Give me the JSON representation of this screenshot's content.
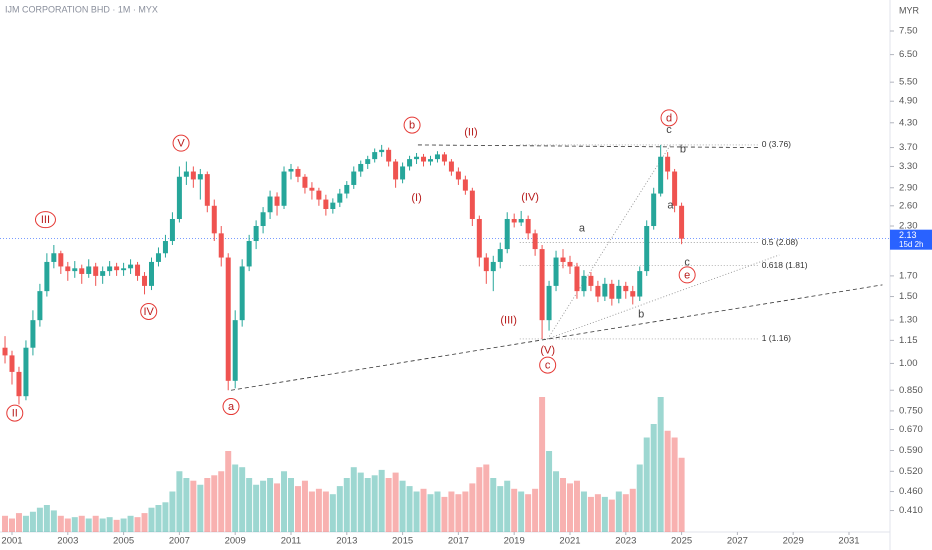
{
  "chart_data": {
    "type": "candlestick",
    "title": "IJM CORPORATION BHD · 1M · MYX",
    "currency": "MYR",
    "last_price": 2.13,
    "countdown": "15d 2h",
    "log_scale": true,
    "grid": false,
    "up_color": "#26a69a",
    "down_color": "#ef5350",
    "x": [
      2000.75,
      2001,
      2001.25,
      2001.5,
      2001.75,
      2002,
      2002.25,
      2002.5,
      2002.75,
      2003,
      2003.25,
      2003.5,
      2003.75,
      2004,
      2004.25,
      2004.5,
      2004.75,
      2005,
      2005.25,
      2005.5,
      2005.75,
      2006,
      2006.25,
      2006.5,
      2006.75,
      2007,
      2007.25,
      2007.5,
      2007.75,
      2008,
      2008.25,
      2008.5,
      2008.75,
      2009,
      2009.25,
      2009.5,
      2009.75,
      2010,
      2010.25,
      2010.5,
      2010.75,
      2011,
      2011.25,
      2011.5,
      2011.75,
      2012,
      2012.25,
      2012.5,
      2012.75,
      2013,
      2013.25,
      2013.5,
      2013.75,
      2014,
      2014.25,
      2014.5,
      2014.75,
      2015,
      2015.25,
      2015.5,
      2015.75,
      2016,
      2016.25,
      2016.5,
      2016.75,
      2017,
      2017.25,
      2017.5,
      2017.75,
      2018,
      2018.25,
      2018.5,
      2018.75,
      2019,
      2019.25,
      2019.5,
      2019.75,
      2020,
      2020.25,
      2020.5,
      2020.75,
      2021,
      2021.25,
      2021.5,
      2021.75,
      2022,
      2022.25,
      2022.5,
      2022.75,
      2023,
      2023.25,
      2023.5,
      2023.75,
      2024,
      2024.25,
      2024.5,
      2024.75,
      2025
    ],
    "open": [
      1.1,
      1.05,
      0.95,
      0.82,
      1.1,
      1.3,
      1.55,
      1.85,
      1.95,
      1.8,
      1.75,
      1.78,
      1.72,
      1.8,
      1.7,
      1.75,
      1.8,
      1.76,
      1.78,
      1.82,
      1.7,
      1.6,
      1.85,
      1.95,
      2.1,
      2.4,
      3.1,
      3.2,
      3.05,
      3.15,
      2.6,
      2.2,
      1.9,
      0.9,
      1.3,
      1.8,
      2.1,
      2.3,
      2.5,
      2.75,
      2.6,
      3.2,
      3.25,
      3.1,
      2.9,
      2.85,
      2.7,
      2.55,
      2.65,
      2.8,
      2.95,
      3.2,
      3.35,
      3.45,
      3.6,
      3.65,
      3.4,
      3.05,
      3.3,
      3.45,
      3.5,
      3.4,
      3.45,
      3.55,
      3.4,
      3.2,
      3.05,
      2.85,
      2.4,
      1.9,
      1.75,
      1.85,
      2.0,
      2.4,
      2.35,
      2.4,
      2.2,
      2.0,
      1.3,
      1.6,
      1.9,
      1.85,
      1.8,
      1.55,
      1.7,
      1.6,
      1.5,
      1.62,
      1.48,
      1.6,
      1.55,
      1.5,
      1.75,
      2.3,
      2.8,
      3.5,
      3.2,
      2.6
    ],
    "high": [
      1.18,
      1.08,
      0.98,
      1.15,
      1.38,
      1.62,
      1.95,
      2.05,
      1.98,
      1.85,
      1.86,
      1.82,
      1.88,
      1.84,
      1.8,
      1.86,
      1.84,
      1.84,
      1.88,
      1.85,
      1.74,
      1.9,
      2.02,
      2.18,
      2.5,
      3.3,
      3.4,
      3.3,
      3.25,
      3.2,
      2.7,
      2.3,
      1.95,
      1.38,
      1.88,
      2.18,
      2.38,
      2.58,
      2.85,
      2.82,
      3.3,
      3.35,
      3.3,
      3.15,
      3.0,
      2.9,
      2.78,
      2.72,
      2.88,
      3.02,
      3.3,
      3.42,
      3.52,
      3.68,
      3.76,
      3.7,
      3.45,
      3.38,
      3.52,
      3.58,
      3.56,
      3.52,
      3.62,
      3.6,
      3.45,
      3.28,
      3.12,
      2.9,
      2.45,
      1.95,
      1.92,
      2.08,
      2.5,
      2.48,
      2.52,
      2.45,
      2.25,
      2.05,
      1.65,
      1.98,
      2.0,
      1.92,
      1.84,
      1.76,
      1.74,
      1.65,
      1.68,
      1.66,
      1.66,
      1.64,
      1.6,
      1.8,
      2.38,
      2.9,
      3.76,
      3.6,
      3.25,
      2.65
    ],
    "low": [
      1.0,
      0.88,
      0.78,
      0.8,
      1.05,
      1.25,
      1.5,
      1.78,
      1.72,
      1.65,
      1.68,
      1.62,
      1.68,
      1.6,
      1.62,
      1.7,
      1.7,
      1.7,
      1.72,
      1.65,
      1.52,
      1.56,
      1.8,
      1.9,
      2.05,
      2.35,
      2.95,
      2.9,
      2.7,
      2.5,
      2.1,
      1.8,
      0.85,
      0.86,
      1.25,
      1.75,
      2.0,
      2.2,
      2.4,
      2.45,
      2.55,
      3.05,
      3.0,
      2.8,
      2.7,
      2.6,
      2.45,
      2.48,
      2.58,
      2.72,
      2.88,
      3.1,
      3.25,
      3.38,
      3.5,
      3.3,
      2.9,
      2.98,
      3.22,
      3.35,
      3.3,
      3.32,
      3.38,
      3.32,
      3.12,
      2.95,
      2.78,
      2.3,
      1.8,
      1.62,
      1.55,
      1.78,
      1.95,
      2.28,
      2.3,
      2.12,
      1.92,
      1.16,
      1.22,
      1.55,
      1.78,
      1.72,
      1.48,
      1.5,
      1.55,
      1.45,
      1.46,
      1.42,
      1.44,
      1.48,
      1.43,
      1.46,
      1.7,
      2.25,
      2.75,
      3.05,
      2.5,
      2.06
    ],
    "close": [
      1.05,
      0.95,
      0.82,
      1.1,
      1.3,
      1.55,
      1.85,
      1.95,
      1.8,
      1.75,
      1.78,
      1.72,
      1.8,
      1.7,
      1.75,
      1.8,
      1.76,
      1.78,
      1.82,
      1.7,
      1.6,
      1.85,
      1.95,
      2.1,
      2.4,
      3.1,
      3.2,
      3.05,
      3.15,
      2.6,
      2.2,
      1.9,
      0.9,
      1.3,
      1.8,
      2.1,
      2.3,
      2.5,
      2.75,
      2.6,
      3.2,
      3.25,
      3.1,
      2.9,
      2.85,
      2.7,
      2.55,
      2.65,
      2.8,
      2.95,
      3.2,
      3.35,
      3.45,
      3.6,
      3.65,
      3.4,
      3.05,
      3.3,
      3.45,
      3.5,
      3.4,
      3.45,
      3.55,
      3.4,
      3.2,
      3.05,
      2.85,
      2.4,
      1.9,
      1.75,
      1.85,
      2.0,
      2.4,
      2.35,
      2.4,
      2.2,
      2.0,
      1.3,
      1.6,
      1.9,
      1.85,
      1.8,
      1.55,
      1.7,
      1.6,
      1.5,
      1.62,
      1.48,
      1.6,
      1.55,
      1.5,
      1.75,
      2.3,
      2.8,
      3.5,
      3.2,
      2.6,
      2.13
    ],
    "volume": [
      12,
      10,
      14,
      12,
      15,
      18,
      20,
      16,
      12,
      10,
      11,
      12,
      10,
      12,
      10,
      11,
      9,
      10,
      12,
      11,
      14,
      18,
      20,
      22,
      30,
      45,
      40,
      38,
      35,
      40,
      42,
      45,
      60,
      50,
      48,
      40,
      35,
      38,
      40,
      36,
      45,
      40,
      34,
      38,
      30,
      32,
      30,
      28,
      34,
      40,
      48,
      44,
      40,
      42,
      46,
      40,
      44,
      38,
      34,
      30,
      32,
      28,
      30,
      26,
      30,
      28,
      30,
      36,
      48,
      50,
      40,
      34,
      38,
      32,
      30,
      28,
      32,
      100,
      60,
      45,
      40,
      36,
      38,
      30,
      26,
      28,
      26,
      24,
      30,
      28,
      32,
      50,
      70,
      80,
      100,
      75,
      70,
      55
    ],
    "xlim": [
      2000.57,
      2032.47
    ],
    "ylim": [
      0.36,
      9.05
    ],
    "xticks": [
      2001,
      2003,
      2005,
      2007,
      2009,
      2011,
      2013,
      2015,
      2017,
      2019,
      2021,
      2023,
      2025,
      2027,
      2029,
      2031
    ],
    "yticks": [
      {
        "value": 7.5,
        "label": "7.50"
      },
      {
        "value": 6.5,
        "label": "6.50"
      },
      {
        "value": 5.5,
        "label": "5.50"
      },
      {
        "value": 4.9,
        "label": "4.90"
      },
      {
        "value": 4.3,
        "label": "4.30"
      },
      {
        "value": 3.7,
        "label": "3.70"
      },
      {
        "value": 3.3,
        "label": "3.30"
      },
      {
        "value": 2.9,
        "label": "2.90"
      },
      {
        "value": 2.6,
        "label": "2.60"
      },
      {
        "value": 2.3,
        "label": "2.30"
      },
      {
        "value": 1.7,
        "label": "1.70"
      },
      {
        "value": 1.5,
        "label": "1.50"
      },
      {
        "value": 1.3,
        "label": "1.30"
      },
      1.15,
      {
        "value": 1,
        "label": "1.00"
      },
      {
        "value": 0.85,
        "label": "0.850"
      },
      {
        "value": 0.75,
        "label": "0.750"
      },
      {
        "value": 0.67,
        "label": "0.670"
      },
      {
        "value": 0.59,
        "label": "0.590"
      },
      {
        "value": 0.52,
        "label": "0.520"
      },
      {
        "value": 0.46,
        "label": "0.460"
      },
      {
        "value": 0.41,
        "label": "0.410"
      }
    ],
    "fib_levels": [
      {
        "value": 3.76,
        "label": "0 (3.76)"
      },
      {
        "value": 2.08,
        "label": "0.5 (2.08)"
      },
      {
        "value": 1.81,
        "label": "0.618 (1.81)"
      },
      {
        "value": 1.16,
        "label": "1 (1.16)"
      }
    ],
    "fib_range": [
      2019.2,
      2027.8
    ],
    "trendlines": [
      {
        "from": [
          2008.85,
          0.85
        ],
        "to": [
          2032.2,
          1.61
        ],
        "dash": "dashed"
      },
      {
        "from": [
          2015.55,
          3.76
        ],
        "to": [
          2027.8,
          3.7
        ],
        "dash": "dashed"
      },
      {
        "from": [
          2020.2,
          1.16
        ],
        "to": [
          2024.6,
          3.76
        ],
        "dash": "dotted"
      },
      {
        "from": [
          2020.2,
          1.16
        ],
        "to": [
          2028.5,
          1.93
        ],
        "dash": "dotted"
      }
    ],
    "annotations": [
      {
        "text": "II",
        "x": 2001.1,
        "y": 0.74,
        "style": "circled"
      },
      {
        "text": "III",
        "x": 2002.2,
        "y": 2.39,
        "style": "circled"
      },
      {
        "text": "IV",
        "x": 2005.9,
        "y": 1.37,
        "style": "circled"
      },
      {
        "text": "V",
        "x": 2007.06,
        "y": 3.8,
        "style": "circled"
      },
      {
        "text": "a",
        "x": 2008.85,
        "y": 0.77,
        "style": "circled"
      },
      {
        "text": "b",
        "x": 2015.34,
        "y": 4.24,
        "style": "circled"
      },
      {
        "text": "(II)",
        "x": 2017.45,
        "y": 4.07,
        "style": "wave"
      },
      {
        "text": "(I)",
        "x": 2015.5,
        "y": 2.73,
        "style": "wave"
      },
      {
        "text": "(IV)",
        "x": 2019.57,
        "y": 2.74,
        "style": "wave"
      },
      {
        "text": "(III)",
        "x": 2018.8,
        "y": 1.3,
        "style": "wave"
      },
      {
        "text": "(V)",
        "x": 2020.2,
        "y": 1.085,
        "style": "wave"
      },
      {
        "text": "c",
        "x": 2020.2,
        "y": 0.99,
        "style": "circled"
      },
      {
        "text": "a",
        "x": 2021.43,
        "y": 2.27,
        "style": "plain"
      },
      {
        "text": "b",
        "x": 2023.55,
        "y": 1.35,
        "style": "plain"
      },
      {
        "text": "d",
        "x": 2024.55,
        "y": 4.43,
        "style": "circled"
      },
      {
        "text": "c",
        "x": 2024.55,
        "y": 4.12,
        "style": "plain"
      },
      {
        "text": "b",
        "x": 2025.05,
        "y": 3.67,
        "style": "plain"
      },
      {
        "text": "a",
        "x": 2024.6,
        "y": 2.61,
        "style": "plain"
      },
      {
        "text": "c",
        "x": 2025.2,
        "y": 1.85,
        "style": "plain"
      },
      {
        "text": "e",
        "x": 2025.2,
        "y": 1.71,
        "style": "circled"
      }
    ]
  }
}
